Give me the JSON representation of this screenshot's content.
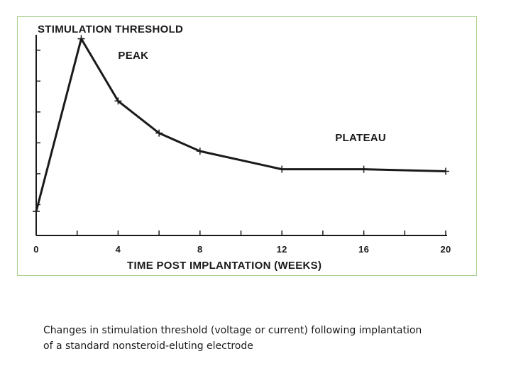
{
  "chart_data": {
    "type": "line",
    "title": "STIMULATION THRESHOLD",
    "xlabel": "TIME POST IMPLANTATION (WEEKS)",
    "ylabel": "",
    "x_ticks": [
      "0",
      "4",
      "8",
      "12",
      "16",
      "20"
    ],
    "xlim": [
      0,
      20
    ],
    "ylim": [
      0,
      1
    ],
    "grid": false,
    "series": [
      {
        "x": [
          0,
          2.2,
          4,
          6,
          8,
          12,
          16,
          20
        ],
        "y": [
          0.12,
          0.98,
          0.67,
          0.51,
          0.42,
          0.33,
          0.33,
          0.32
        ]
      }
    ],
    "annotations": [
      {
        "text": "PEAK",
        "x": 4,
        "y": 0.88
      },
      {
        "text": "PLATEAU",
        "x": 14.6,
        "y": 0.47
      }
    ]
  },
  "caption": "Changes in stimulation threshold (voltage or current) following implantation\nof a standard nonsteroid-eluting electrode",
  "colors": {
    "line": "#1a1a1a",
    "frame_border": "#a9cf8f",
    "text": "#1a1a1a"
  }
}
